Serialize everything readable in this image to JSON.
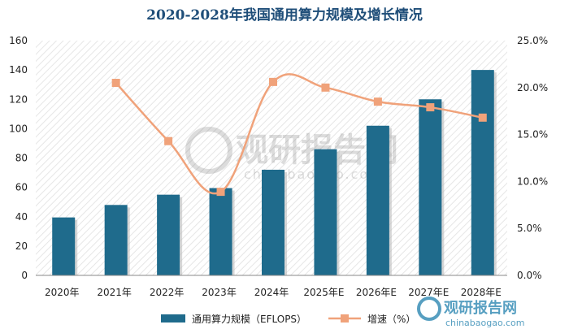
{
  "chart_data": {
    "type": "bar+line",
    "title": "2020-2028年我国通用算力规模及增长情况",
    "categories": [
      "2020年",
      "2021年",
      "2022年",
      "2023年",
      "2024年",
      "2025年E",
      "2026年E",
      "2027年E",
      "2028年E"
    ],
    "series": [
      {
        "name": "通用算力规模（EFLOPS）",
        "type": "bar",
        "axis": "left",
        "color": "#1f6b8c",
        "values": [
          39.5,
          48,
          55,
          59.5,
          72,
          86,
          102,
          120,
          140
        ]
      },
      {
        "name": "增速（%）",
        "type": "line",
        "axis": "right",
        "color": "#f0a27a",
        "values": [
          null,
          20.5,
          14.3,
          8.9,
          20.6,
          20.0,
          18.5,
          17.9,
          16.8
        ]
      }
    ],
    "left_axis": {
      "ylim": [
        0,
        160
      ],
      "ticks": [
        "0",
        "20",
        "40",
        "60",
        "80",
        "100",
        "120",
        "140",
        "160"
      ]
    },
    "right_axis": {
      "ylim": [
        0,
        25
      ],
      "ticks": [
        "0.0%",
        "5.0%",
        "10.0%",
        "15.0%",
        "20.0%",
        "25.0%"
      ]
    },
    "grid": false,
    "legend_position": "bottom",
    "watermark": [
      "观研报告网",
      "chinabaogao.com"
    ]
  }
}
